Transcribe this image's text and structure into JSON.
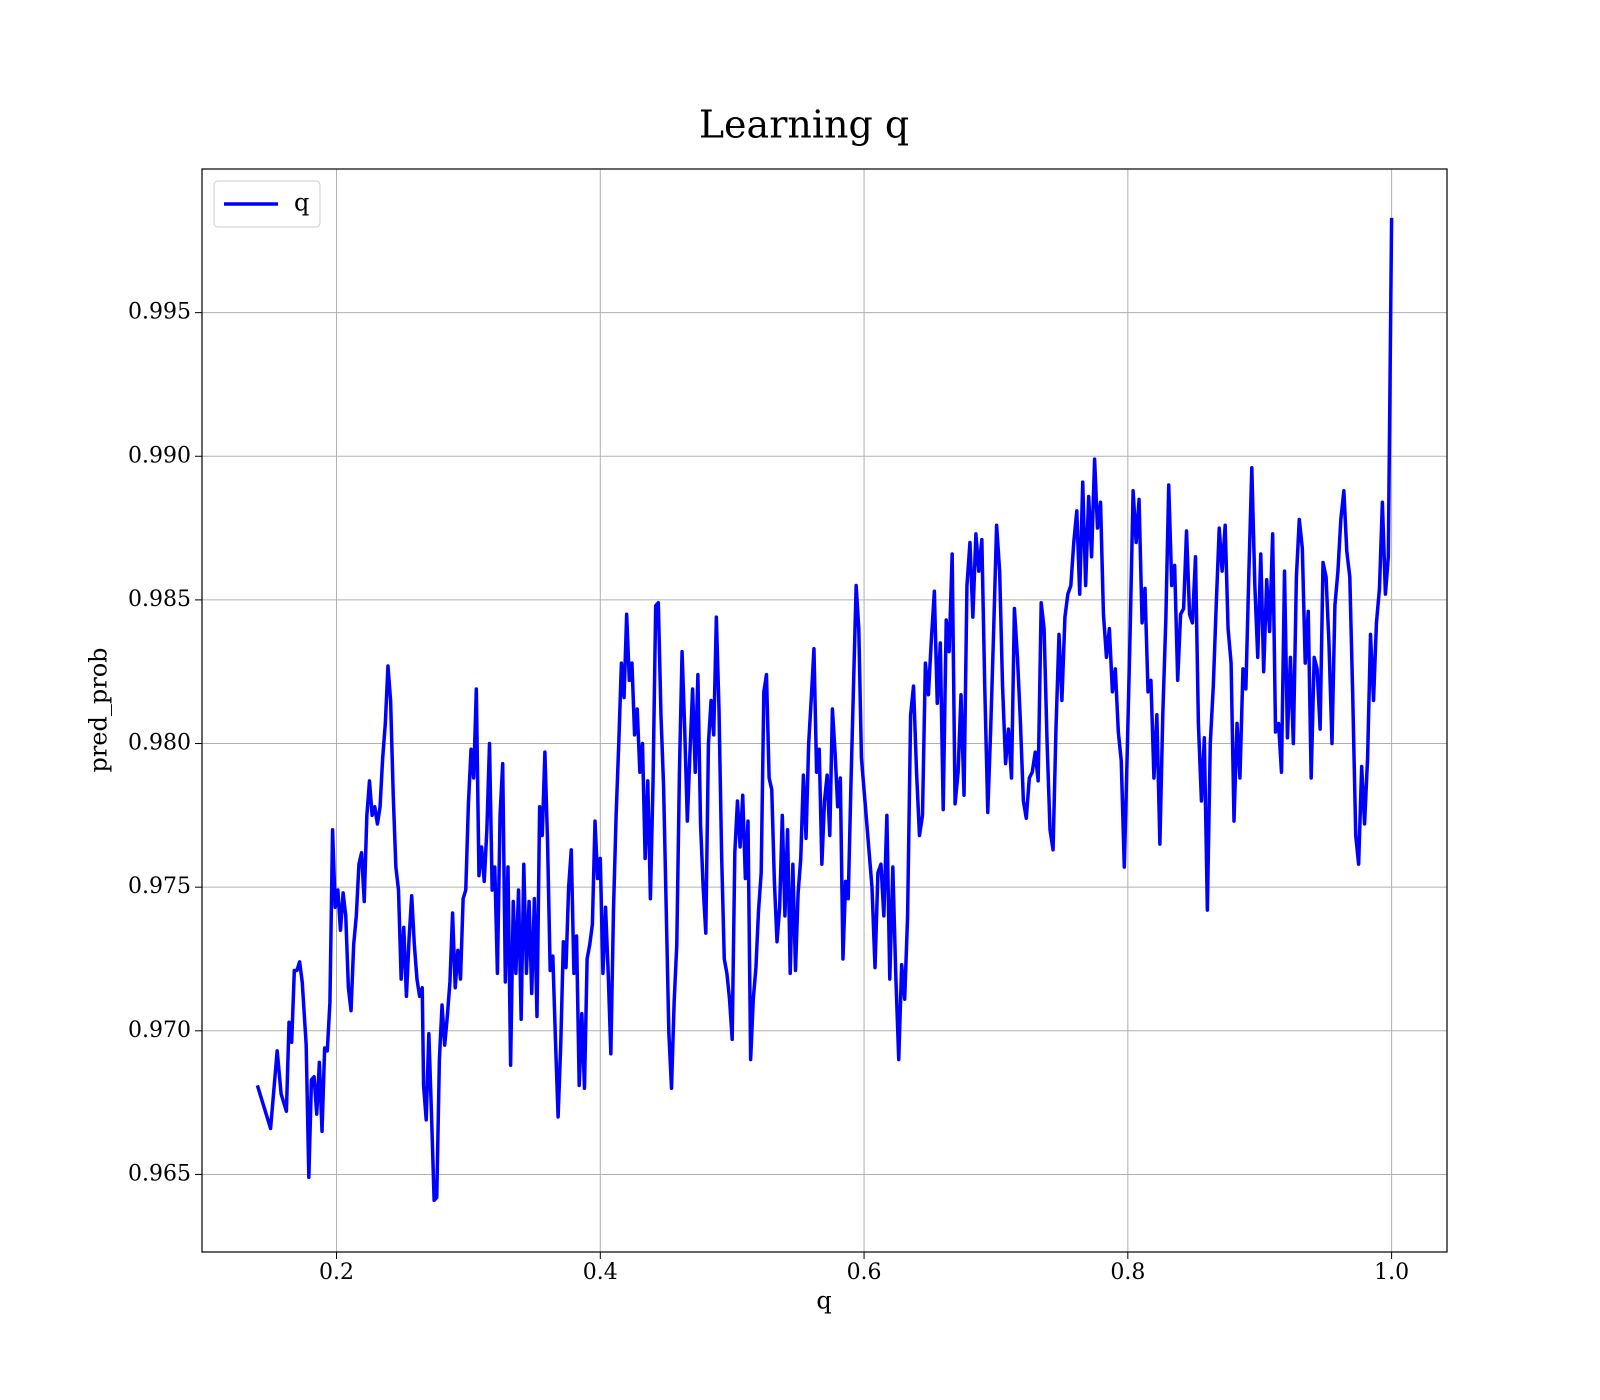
{
  "chart_data": {
    "type": "line",
    "title": "Learning q",
    "xlabel": "q",
    "ylabel": "pred_prob",
    "grid": true,
    "legend": "upper left",
    "xlim": [
      0.098,
      1.042
    ],
    "ylim": [
      0.9623,
      1.0
    ],
    "xticks": [
      0.2,
      0.4,
      0.6,
      0.8,
      {
        "value": 1.0,
        "label": "1.0"
      }
    ],
    "yticks": [
      0.965,
      {
        "value": 0.97,
        "label": "0.970"
      },
      0.975,
      {
        "value": 0.98,
        "label": "0.980"
      },
      0.985,
      {
        "value": 0.99,
        "label": "0.990"
      },
      0.995
    ],
    "x": [
      0.14,
      0.15,
      0.155,
      0.158,
      0.162,
      0.164,
      0.166,
      0.168,
      0.17,
      0.172,
      0.174,
      0.177,
      0.179,
      0.181,
      0.183,
      0.185,
      0.187,
      0.189,
      0.191,
      0.193,
      0.195,
      0.197,
      0.199,
      0.201,
      0.203,
      0.205,
      0.207,
      0.209,
      0.211,
      0.213,
      0.215,
      0.217,
      0.219,
      0.221,
      0.223,
      0.225,
      0.227,
      0.229,
      0.231,
      0.233,
      0.235,
      0.237,
      0.239,
      0.241,
      0.243,
      0.245,
      0.247,
      0.249,
      0.251,
      0.253,
      0.255,
      0.257,
      0.259,
      0.261,
      0.263,
      0.265,
      0.266,
      0.268,
      0.27,
      0.272,
      0.274,
      0.276,
      0.278,
      0.28,
      0.282,
      0.284,
      0.286,
      0.288,
      0.29,
      0.292,
      0.294,
      0.296,
      0.298,
      0.3,
      0.302,
      0.304,
      0.306,
      0.308,
      0.31,
      0.312,
      0.314,
      0.316,
      0.318,
      0.32,
      0.322,
      0.324,
      0.326,
      0.328,
      0.33,
      0.332,
      0.334,
      0.336,
      0.338,
      0.34,
      0.342,
      0.344,
      0.346,
      0.348,
      0.35,
      0.352,
      0.354,
      0.356,
      0.358,
      0.36,
      0.362,
      0.364,
      0.366,
      0.368,
      0.37,
      0.372,
      0.374,
      0.376,
      0.378,
      0.38,
      0.382,
      0.384,
      0.386,
      0.388,
      0.39,
      0.392,
      0.394,
      0.396,
      0.398,
      0.4,
      0.402,
      0.404,
      0.406,
      0.408,
      0.41,
      0.412,
      0.414,
      0.416,
      0.418,
      0.42,
      0.422,
      0.424,
      0.426,
      0.428,
      0.43,
      0.432,
      0.434,
      0.436,
      0.438,
      0.44,
      0.442,
      0.444,
      0.446,
      0.448,
      0.45,
      0.452,
      0.454,
      0.456,
      0.458,
      0.46,
      0.462,
      0.464,
      0.466,
      0.468,
      0.47,
      0.472,
      0.474,
      0.476,
      0.478,
      0.48,
      0.482,
      0.484,
      0.486,
      0.488,
      0.49,
      0.492,
      0.494,
      0.496,
      0.498,
      0.5,
      0.502,
      0.504,
      0.506,
      0.508,
      0.51,
      0.512,
      0.514,
      0.516,
      0.518,
      0.52,
      0.522,
      0.524,
      0.526,
      0.528,
      0.53,
      0.532,
      0.534,
      0.536,
      0.538,
      0.54,
      0.542,
      0.544,
      0.546,
      0.548,
      0.55,
      0.552,
      0.554,
      0.556,
      0.558,
      0.56,
      0.562,
      0.564,
      0.566,
      0.568,
      0.57,
      0.572,
      0.574,
      0.576,
      0.578,
      0.58,
      0.582,
      0.584,
      0.586,
      0.588,
      0.59,
      0.592,
      0.594,
      0.596,
      0.598,
      0.606,
      0.6083,
      0.6105,
      0.6128,
      0.615,
      0.6173,
      0.6195,
      0.6218,
      0.624,
      0.6263,
      0.6285,
      0.6308,
      0.633,
      0.6353,
      0.6375,
      0.6398,
      0.642,
      0.6443,
      0.6465,
      0.6488,
      0.651,
      0.6533,
      0.6555,
      0.6578,
      0.66,
      0.6623,
      0.6645,
      0.6668,
      0.669,
      0.6713,
      0.6735,
      0.6758,
      0.678,
      0.6803,
      0.6825,
      0.6848,
      0.687,
      0.6893,
      0.6915,
      0.6938,
      0.696,
      0.6983,
      0.7005,
      0.7028,
      0.705,
      0.7073,
      0.7095,
      0.7118,
      0.714,
      0.7163,
      0.7185,
      0.7208,
      0.723,
      0.7253,
      0.7275,
      0.7298,
      0.732,
      0.7343,
      0.7365,
      0.7388,
      0.741,
      0.7433,
      0.7455,
      0.7478,
      0.75,
      0.7523,
      0.7545,
      0.7568,
      0.759,
      0.7613,
      0.7635,
      0.7658,
      0.768,
      0.7703,
      0.7725,
      0.7748,
      0.777,
      0.7793,
      0.7815,
      0.7838,
      0.786,
      0.7883,
      0.7905,
      0.7928,
      0.795,
      0.7973,
      0.7995,
      0.8018,
      0.804,
      0.8063,
      0.8085,
      0.8108,
      0.813,
      0.8153,
      0.8175,
      0.8198,
      0.822,
      0.8243,
      0.8265,
      0.8288,
      0.831,
      0.8333,
      0.8355,
      0.8378,
      0.84,
      0.8423,
      0.8445,
      0.8468,
      0.849,
      0.8513,
      0.8535,
      0.8558,
      0.858,
      0.8603,
      0.8625,
      0.8648,
      0.867,
      0.8693,
      0.8715,
      0.8738,
      0.876,
      0.8783,
      0.8805,
      0.8828,
      0.885,
      0.8873,
      0.8895,
      0.8918,
      0.894,
      0.8963,
      0.8985,
      0.9008,
      0.903,
      0.9053,
      0.9075,
      0.9098,
      0.912,
      0.9143,
      0.9165,
      0.9188,
      0.921,
      0.9233,
      0.9255,
      0.9278,
      0.93,
      0.9323,
      0.9345,
      0.9368,
      0.939,
      0.9413,
      0.9435,
      0.9458,
      0.948,
      0.9503,
      0.9525,
      0.9548,
      0.957,
      0.9593,
      0.9615,
      0.9638,
      0.966,
      0.9683,
      0.9705,
      0.9728,
      0.975,
      0.9773,
      0.9795,
      0.9818,
      0.984,
      0.9863,
      0.9885,
      0.9908,
      0.993,
      0.9953,
      0.9975,
      1.0
    ],
    "series": [
      {
        "name": "q",
        "color": "#0000ff",
        "values": [
          0.9681,
          0.9666,
          0.9693,
          0.9678,
          0.9672,
          0.9703,
          0.9696,
          0.9721,
          0.9721,
          0.9724,
          0.9717,
          0.9695,
          0.9649,
          0.9683,
          0.9684,
          0.9671,
          0.9689,
          0.9665,
          0.9694,
          0.9693,
          0.971,
          0.977,
          0.9743,
          0.9749,
          0.9735,
          0.9748,
          0.974,
          0.9715,
          0.9707,
          0.973,
          0.974,
          0.9758,
          0.9762,
          0.9745,
          0.9775,
          0.9787,
          0.9775,
          0.9778,
          0.9772,
          0.9778,
          0.9795,
          0.9807,
          0.9827,
          0.9815,
          0.9782,
          0.9757,
          0.9749,
          0.9718,
          0.9736,
          0.9712,
          0.9732,
          0.9747,
          0.973,
          0.9718,
          0.9712,
          0.9715,
          0.9681,
          0.9669,
          0.9699,
          0.9671,
          0.9641,
          0.9642,
          0.969,
          0.9709,
          0.9695,
          0.9705,
          0.9717,
          0.9741,
          0.9715,
          0.9728,
          0.9718,
          0.9746,
          0.9749,
          0.9779,
          0.9798,
          0.9788,
          0.9819,
          0.9754,
          0.9764,
          0.9752,
          0.977,
          0.98,
          0.9749,
          0.9757,
          0.972,
          0.9775,
          0.9793,
          0.9717,
          0.9757,
          0.9688,
          0.9745,
          0.972,
          0.9749,
          0.9704,
          0.9758,
          0.972,
          0.9745,
          0.9713,
          0.9746,
          0.9705,
          0.9778,
          0.9768,
          0.9797,
          0.9766,
          0.9721,
          0.9726,
          0.9697,
          0.967,
          0.9695,
          0.9731,
          0.9722,
          0.975,
          0.9763,
          0.972,
          0.9733,
          0.9681,
          0.9706,
          0.968,
          0.9725,
          0.973,
          0.9737,
          0.9773,
          0.9753,
          0.976,
          0.972,
          0.9743,
          0.972,
          0.9692,
          0.9742,
          0.9775,
          0.98,
          0.9828,
          0.9816,
          0.9845,
          0.9822,
          0.9828,
          0.9803,
          0.9812,
          0.979,
          0.98,
          0.976,
          0.9787,
          0.9746,
          0.9787,
          0.9848,
          0.9849,
          0.981,
          0.9785,
          0.9742,
          0.9699,
          0.968,
          0.971,
          0.973,
          0.979,
          0.9832,
          0.9805,
          0.9773,
          0.9797,
          0.9819,
          0.979,
          0.9824,
          0.9772,
          0.975,
          0.9734,
          0.98,
          0.9815,
          0.9803,
          0.9844,
          0.9812,
          0.9761,
          0.9725,
          0.972,
          0.9711,
          0.9697,
          0.9762,
          0.978,
          0.9764,
          0.9782,
          0.9753,
          0.9773,
          0.969,
          0.9711,
          0.9722,
          0.9742,
          0.9755,
          0.9818,
          0.9824,
          0.9788,
          0.9784,
          0.9752,
          0.9731,
          0.9743,
          0.9775,
          0.974,
          0.977,
          0.972,
          0.9758,
          0.9721,
          0.9748,
          0.976,
          0.9789,
          0.9767,
          0.98,
          0.9816,
          0.9833,
          0.979,
          0.9798,
          0.9758,
          0.978,
          0.9789,
          0.9768,
          0.9812,
          0.9797,
          0.9778,
          0.9788,
          0.9725,
          0.9752,
          0.9746,
          0.9785,
          0.982,
          0.9855,
          0.984,
          0.9795,
          0.975,
          0.9722,
          0.9755,
          0.9758,
          0.974,
          0.9775,
          0.9718,
          0.9757,
          0.972,
          0.969,
          0.9723,
          0.9711,
          0.974,
          0.981,
          0.982,
          0.979,
          0.9768,
          0.9775,
          0.9828,
          0.9817,
          0.9836,
          0.9853,
          0.9814,
          0.9835,
          0.9777,
          0.9843,
          0.9832,
          0.9866,
          0.9779,
          0.979,
          0.9817,
          0.9782,
          0.9855,
          0.987,
          0.9844,
          0.9873,
          0.986,
          0.9871,
          0.982,
          0.9776,
          0.9805,
          0.984,
          0.9876,
          0.986,
          0.982,
          0.9793,
          0.9805,
          0.9788,
          0.9847,
          0.983,
          0.9808,
          0.978,
          0.9774,
          0.9788,
          0.979,
          0.9797,
          0.9787,
          0.9849,
          0.984,
          0.98,
          0.977,
          0.9763,
          0.9805,
          0.9838,
          0.9815,
          0.9844,
          0.9852,
          0.9855,
          0.987,
          0.9881,
          0.9852,
          0.9891,
          0.9855,
          0.9886,
          0.9865,
          0.9899,
          0.9875,
          0.9884,
          0.9845,
          0.983,
          0.984,
          0.9818,
          0.9826,
          0.9804,
          0.9794,
          0.9757,
          0.9796,
          0.984,
          0.9888,
          0.987,
          0.9885,
          0.9842,
          0.9854,
          0.9818,
          0.9822,
          0.9788,
          0.981,
          0.9765,
          0.981,
          0.9843,
          0.989,
          0.9855,
          0.9862,
          0.9822,
          0.9845,
          0.9847,
          0.9874,
          0.9845,
          0.9842,
          0.9865,
          0.9807,
          0.978,
          0.9802,
          0.9742,
          0.98,
          0.982,
          0.9848,
          0.9875,
          0.986,
          0.9876,
          0.984,
          0.9828,
          0.9773,
          0.9807,
          0.9788,
          0.9826,
          0.9819,
          0.986,
          0.9896,
          0.9855,
          0.983,
          0.9866,
          0.9825,
          0.9857,
          0.9839,
          0.9873,
          0.9804,
          0.9807,
          0.979,
          0.986,
          0.9802,
          0.983,
          0.98,
          0.9858,
          0.9878,
          0.9868,
          0.9828,
          0.9846,
          0.9788,
          0.983,
          0.9826,
          0.9805,
          0.9863,
          0.9858,
          0.9835,
          0.98,
          0.9848,
          0.986,
          0.9878,
          0.9888,
          0.9867,
          0.9858,
          0.9817,
          0.9768,
          0.9758,
          0.9792,
          0.9772,
          0.9795,
          0.9838,
          0.9815,
          0.9842,
          0.9854,
          0.9884,
          0.9852,
          0.9865,
          0.9983
        ]
      }
    ]
  }
}
